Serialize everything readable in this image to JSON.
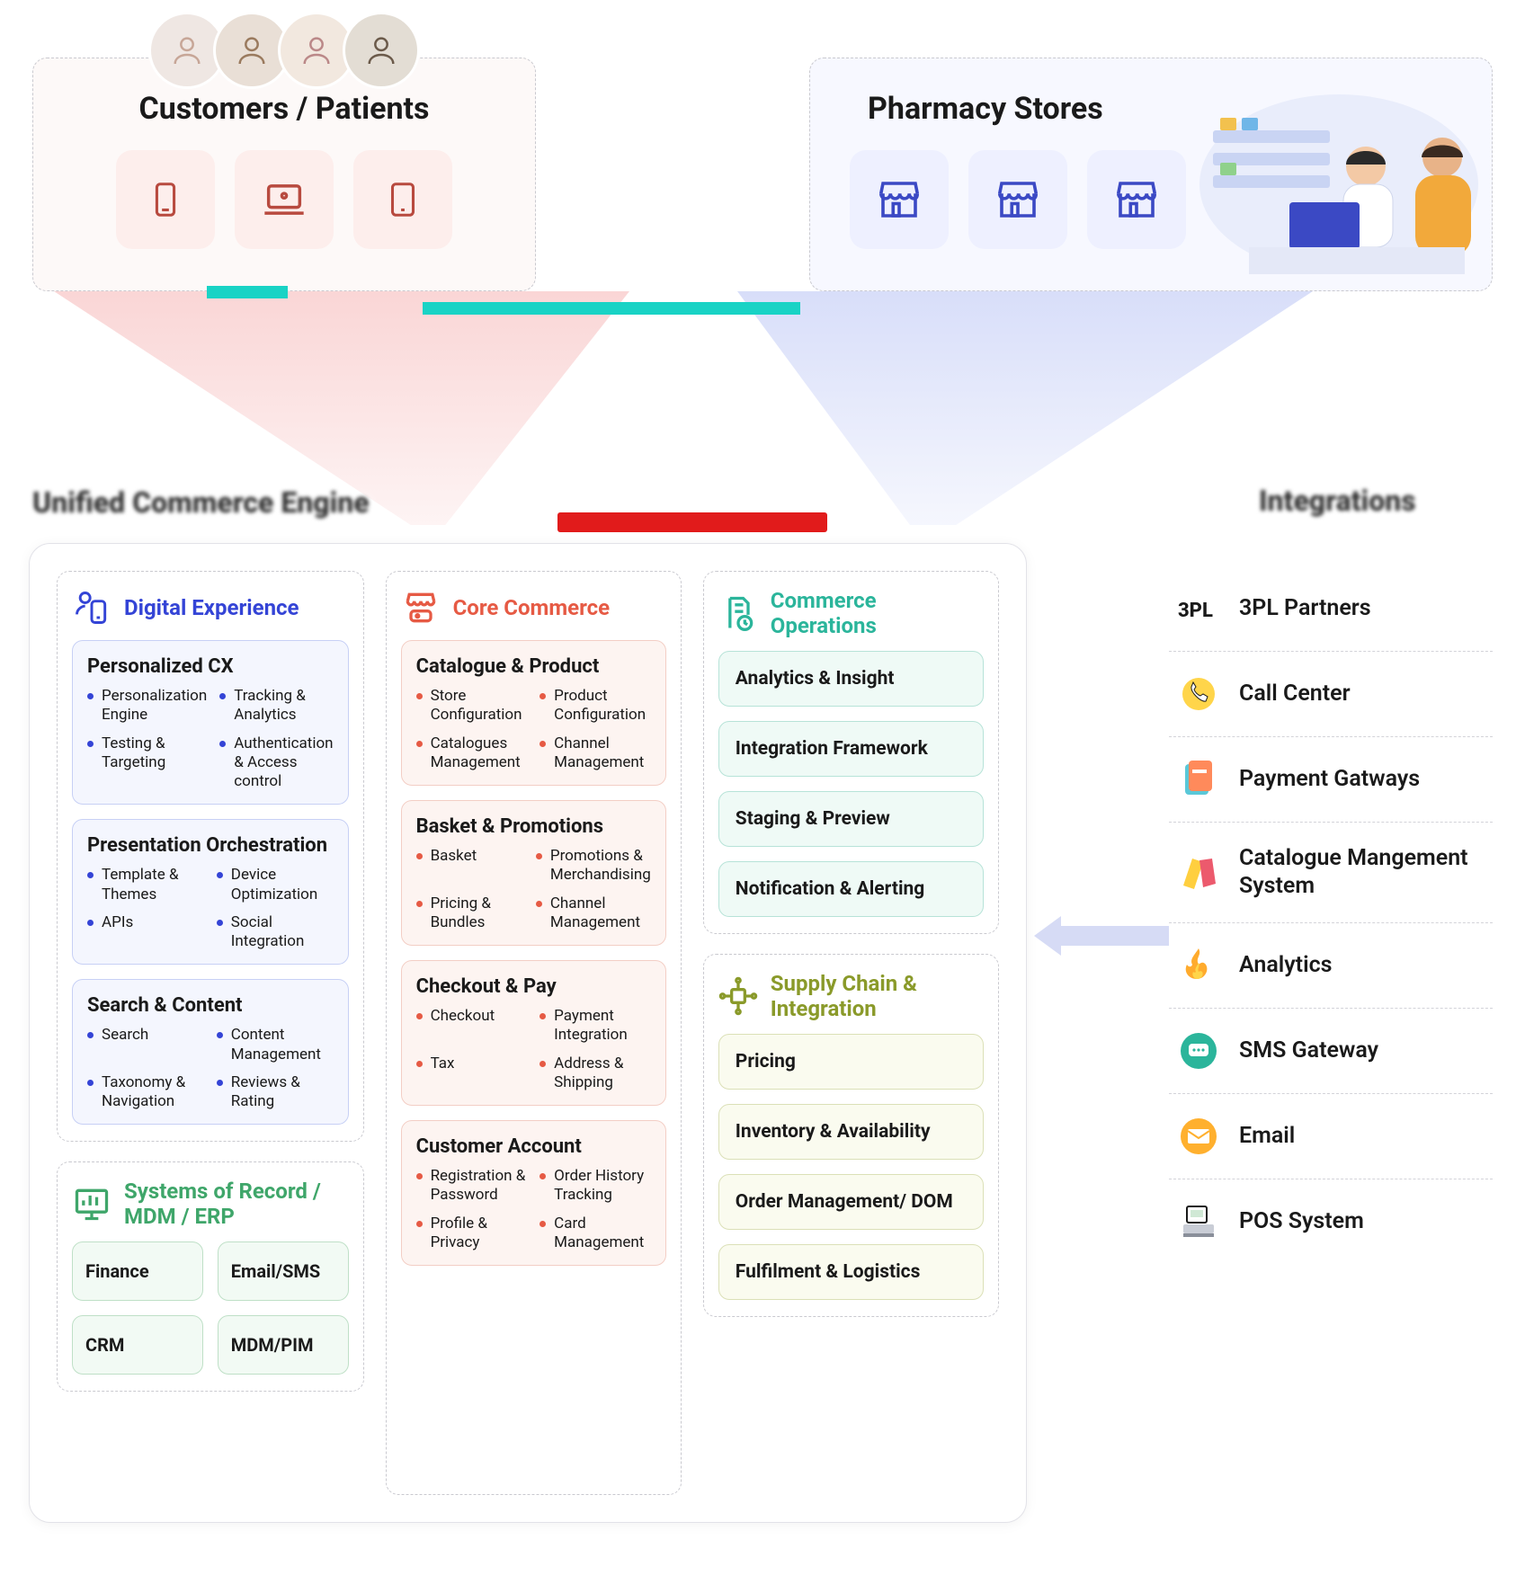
{
  "colors": {
    "blue": "#3444d6",
    "red": "#e65a44",
    "teal": "#2bb59b",
    "olive": "#8a9a2a",
    "green": "#3fa66a",
    "tealAccent": "#19d3c5",
    "redAccent": "#e11b1b",
    "border": "#e2e2e8",
    "dash": "#c9c9cf"
  },
  "top": {
    "customers": {
      "title": "Customers / Patients",
      "devices": [
        "phone",
        "laptop",
        "tablet"
      ]
    },
    "pharmacy": {
      "title": "Pharmacy Stores",
      "stores": 3
    }
  },
  "sections": {
    "engineLabel": "Unified Commerce Engine",
    "integLabel": "Integrations"
  },
  "engine": {
    "digital": {
      "title": "Digital Experience",
      "groups": [
        {
          "title": "Personalized CX",
          "points": [
            "Personalization Engine",
            "Tracking & Analytics",
            "Testing & Targeting",
            "Authentication & Access control"
          ]
        },
        {
          "title": "Presentation Orchestration",
          "points": [
            "Template & Themes",
            "Device Optimization",
            "APIs",
            "Social Integration"
          ]
        },
        {
          "title": "Search & Content",
          "points": [
            "Search",
            "Content Management",
            "Taxonomy & Navigation",
            "Reviews & Rating"
          ]
        }
      ]
    },
    "core": {
      "title": "Core Commerce",
      "groups": [
        {
          "title": "Catalogue & Product",
          "points": [
            "Store Configuration",
            "Product Configuration",
            "Catalogues Management",
            "Channel Management"
          ]
        },
        {
          "title": "Basket & Promotions",
          "points": [
            "Basket",
            "Promotions & Merchandising",
            "Pricing & Bundles",
            "Channel Management"
          ]
        },
        {
          "title": "Checkout & Pay",
          "points": [
            "Checkout",
            "Payment Integration",
            "Tax",
            "Address & Shipping"
          ]
        },
        {
          "title": "Customer Account",
          "points": [
            "Registration & Password",
            "Order History Tracking",
            "Profile & Privacy",
            "Card Management"
          ]
        }
      ]
    },
    "ops": {
      "title": "Commerce Operations",
      "pills": [
        "Analytics & Insight",
        "Integration Framework",
        "Staging & Preview",
        "Notification & Alerting"
      ]
    },
    "supply": {
      "title": "Supply Chain & Integration",
      "pills": [
        "Pricing",
        "Inventory & Availability",
        "Order Management/ DOM",
        "Fulfilment & Logistics"
      ]
    },
    "sor": {
      "title": "Systems of Record / MDM / ERP",
      "boxes": [
        "Finance",
        "Email/SMS",
        "CRM",
        "MDM/PIM"
      ]
    }
  },
  "integrations": [
    {
      "icon": "3pl",
      "label": "3PL Partners"
    },
    {
      "icon": "call",
      "label": "Call Center"
    },
    {
      "icon": "pay",
      "label": "Payment Gatways"
    },
    {
      "icon": "cat",
      "label": "Catalogue Mangement System"
    },
    {
      "icon": "fire",
      "label": "Analytics"
    },
    {
      "icon": "sms",
      "label": "SMS Gateway"
    },
    {
      "icon": "email",
      "label": "Email"
    },
    {
      "icon": "pos",
      "label": "POS System"
    }
  ]
}
